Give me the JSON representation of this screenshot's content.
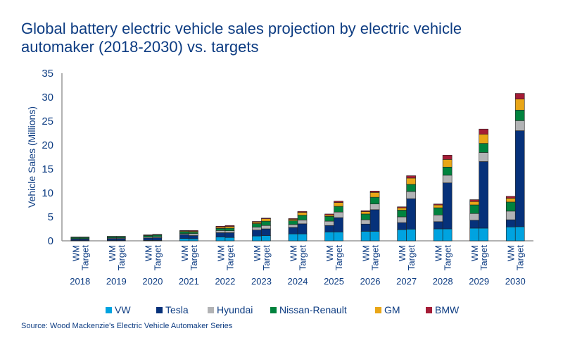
{
  "chart_data": {
    "type": "bar",
    "stacked": true,
    "title": "Global battery electric vehicle sales projection by electric vehicle automaker (2018-2030) vs. targets",
    "ylabel": "Vehicle Sales (Millions)",
    "ylim": [
      0,
      35
    ],
    "yticks": [
      0,
      5,
      10,
      15,
      20,
      25,
      30,
      35
    ],
    "grid": false,
    "legend": "bottom",
    "categories": [
      "2018",
      "2019",
      "2020",
      "2021",
      "2022",
      "2023",
      "2024",
      "2025",
      "2026",
      "2027",
      "2028",
      "2029",
      "2030"
    ],
    "subcategories": [
      "WM",
      "Target"
    ],
    "series": [
      {
        "name": "VW",
        "color": "#00a3e0",
        "WM": [
          0.05,
          0.05,
          0.1,
          0.5,
          0.8,
          1.0,
          1.45,
          1.85,
          2.0,
          2.35,
          2.5,
          2.65,
          2.9
        ],
        "Target": [
          0.05,
          0.05,
          0.1,
          0.45,
          0.7,
          1.1,
          1.45,
          1.85,
          2.0,
          2.45,
          2.5,
          2.65,
          2.95
        ]
      },
      {
        "name": "Tesla",
        "color": "#06317a",
        "WM": [
          0.3,
          0.4,
          0.5,
          0.8,
          0.9,
          1.25,
          1.35,
          1.35,
          1.5,
          1.45,
          1.5,
          1.65,
          1.5
        ],
        "Target": [
          0.3,
          0.4,
          0.55,
          0.65,
          1.0,
          1.4,
          2.1,
          3.0,
          4.5,
          6.35,
          9.6,
          13.9,
          20.05
        ]
      },
      {
        "name": "Hyundai",
        "color": "#b2b3b5",
        "WM": [
          0.1,
          0.15,
          0.2,
          0.2,
          0.45,
          0.6,
          0.6,
          0.9,
          0.9,
          1.2,
          1.4,
          1.4,
          1.8
        ],
        "Target": [
          0.1,
          0.15,
          0.2,
          0.4,
          0.4,
          0.7,
          0.8,
          1.15,
          1.2,
          1.5,
          1.6,
          1.9,
          2.1
        ]
      },
      {
        "name": "Nissan-Renault",
        "color": "#00833e",
        "WM": [
          0.25,
          0.25,
          0.3,
          0.4,
          0.45,
          0.75,
          0.8,
          1.0,
          1.2,
          1.4,
          1.5,
          1.8,
          1.9
        ],
        "Target": [
          0.25,
          0.25,
          0.35,
          0.3,
          0.55,
          0.9,
          1.0,
          1.2,
          1.4,
          1.5,
          1.7,
          1.9,
          2.2
        ]
      },
      {
        "name": "GM",
        "color": "#e9a617",
        "WM": [
          0.05,
          0.05,
          0.1,
          0.15,
          0.25,
          0.3,
          0.3,
          0.3,
          0.5,
          0.5,
          0.6,
          0.7,
          0.8
        ],
        "Target": [
          0.05,
          0.05,
          0.1,
          0.2,
          0.35,
          0.5,
          0.6,
          0.8,
          1.0,
          1.3,
          1.6,
          1.9,
          2.3
        ]
      },
      {
        "name": "BMW",
        "color": "#a51c36",
        "WM": [
          0.05,
          0.05,
          0.05,
          0.1,
          0.2,
          0.15,
          0.15,
          0.2,
          0.2,
          0.2,
          0.2,
          0.4,
          0.4
        ],
        "Target": [
          0.05,
          0.05,
          0.05,
          0.15,
          0.2,
          0.15,
          0.2,
          0.3,
          0.3,
          0.5,
          0.9,
          1.1,
          1.2
        ]
      }
    ]
  },
  "source": "Source: Wood Mackenzie's Electric Vehicle Automaker Series"
}
